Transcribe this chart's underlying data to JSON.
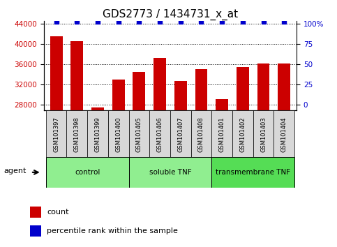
{
  "title": "GDS2773 / 1434731_x_at",
  "samples": [
    "GSM101397",
    "GSM101398",
    "GSM101399",
    "GSM101400",
    "GSM101405",
    "GSM101406",
    "GSM101407",
    "GSM101408",
    "GSM101401",
    "GSM101402",
    "GSM101403",
    "GSM101404"
  ],
  "counts": [
    41500,
    40500,
    27500,
    33000,
    34500,
    37200,
    32700,
    35000,
    29200,
    35500,
    36200,
    36100
  ],
  "percentiles": [
    100,
    100,
    100,
    100,
    100,
    100,
    100,
    100,
    100,
    100,
    100,
    100
  ],
  "groups": [
    {
      "label": "control",
      "start": 0,
      "end": 4,
      "color": "#90EE90"
    },
    {
      "label": "soluble TNF",
      "start": 4,
      "end": 8,
      "color": "#90EE90"
    },
    {
      "label": "transmembrane TNF",
      "start": 8,
      "end": 12,
      "color": "#55DD55"
    }
  ],
  "bar_color": "#CC0000",
  "percentile_color": "#0000CC",
  "ymin": 27000,
  "ymax": 44500,
  "yticks": [
    28000,
    32000,
    36000,
    40000,
    44000
  ],
  "y2ticks": [
    0,
    25,
    50,
    75,
    100
  ],
  "y2labels": [
    "0",
    "25",
    "50",
    "75",
    "100%"
  ],
  "grid_color": "#000000",
  "bg_color": "#FFFFFF",
  "tick_label_color_left": "#CC0000",
  "tick_label_color_right": "#0000CC",
  "title_fontsize": 11,
  "sample_box_color": "#D8D8D8",
  "legend_items": [
    {
      "label": "count",
      "color": "#CC0000"
    },
    {
      "label": "percentile rank within the sample",
      "color": "#0000CC"
    }
  ]
}
